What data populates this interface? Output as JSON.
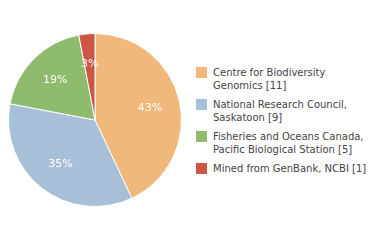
{
  "chart_data": {
    "type": "pie",
    "categories": [
      "Centre for Biodiversity\nGenomics [11]",
      "National Research Council,\nSaskatoon [9]",
      "Fisheries and Oceans Canada,\nPacific Biological Station [5]",
      "Mined from GenBank, NCBI [1]"
    ],
    "values": [
      43,
      35,
      19,
      3
    ],
    "value_labels": [
      "43%",
      "35%",
      "19%",
      "3%"
    ],
    "colors": [
      "#f0b87a",
      "#a8bfd8",
      "#8fbb6e",
      "#cc5544"
    ],
    "data_labels": true,
    "legend": "right"
  }
}
